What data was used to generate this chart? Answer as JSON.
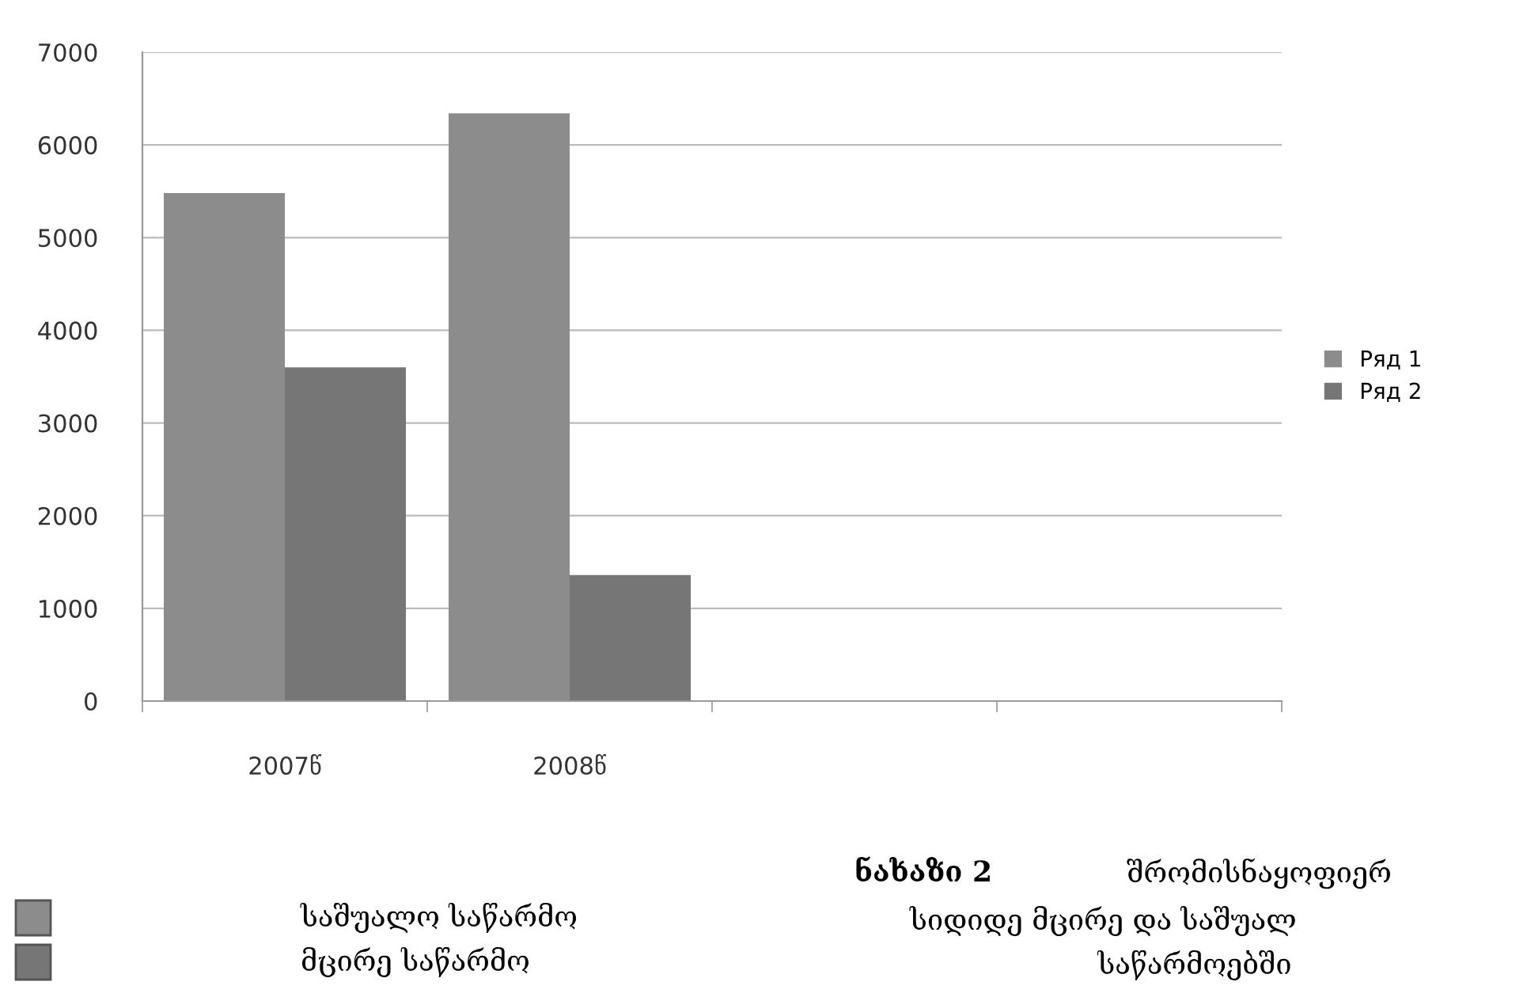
{
  "chart_data": {
    "type": "bar",
    "categories": [
      "2007წ",
      "2008წ",
      null,
      null
    ],
    "series": [
      {
        "name": "Ряд 1",
        "color": "#8c8c8c",
        "values": [
          5480,
          6340,
          null,
          null
        ]
      },
      {
        "name": "Ряд 2",
        "color": "#767676",
        "values": [
          3600,
          1360,
          null,
          null
        ]
      }
    ],
    "ylim": [
      0,
      7000
    ],
    "yticks": [
      0,
      1000,
      2000,
      3000,
      4000,
      5000,
      6000,
      7000
    ],
    "grid": "y",
    "legend": "right",
    "annotations": [
      "ნახაზი 2",
      "შრომისნაყოფიერ",
      "სიდიდე მცირე და საშუალ",
      "საწარმოებში",
      "საშუალო საწარმო",
      "მცირე საწარმო"
    ]
  }
}
